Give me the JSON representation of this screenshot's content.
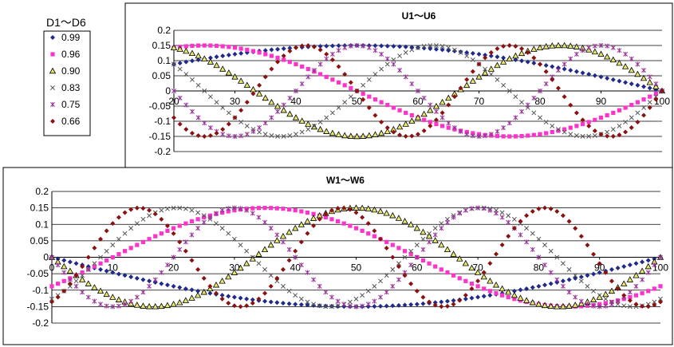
{
  "legend": {
    "title": "D1～D6",
    "entries": [
      {
        "label": "0.99",
        "color": "#1f2a8c",
        "marker": "diamond"
      },
      {
        "label": "0.96",
        "color": "#ff33cc",
        "marker": "square"
      },
      {
        "label": "0.90",
        "color": "#e8e870",
        "marker": "triangle"
      },
      {
        "label": "0.83",
        "color": "#555555",
        "marker": "x"
      },
      {
        "label": "0.75",
        "color": "#993399",
        "marker": "star"
      },
      {
        "label": "0.66",
        "color": "#8b1010",
        "marker": "diamond"
      }
    ]
  },
  "chart_data": [
    {
      "type": "scatter",
      "title": "U1～U6",
      "xlim": [
        20,
        100
      ],
      "ylim": [
        -0.2,
        0.2
      ],
      "x_ticks": [
        "20",
        "30",
        "40",
        "50",
        "60",
        "70",
        "80",
        "90",
        "100"
      ],
      "y_ticks": [
        "0.2",
        "0.15",
        "0.1",
        "0.05",
        "0",
        "-0.05",
        "-0.1",
        "-0.15",
        "-0.2"
      ],
      "grid": true,
      "x_step": 1,
      "series": [
        {
          "label_ref": "0.99",
          "amplitude": 0.15,
          "wavelength": 200,
          "phase_origin": 0
        },
        {
          "label_ref": "0.96",
          "amplitude": 0.15,
          "wavelength": 100,
          "phase_origin": 0
        },
        {
          "label_ref": "0.90",
          "amplitude": 0.15,
          "wavelength": 66.67,
          "phase_origin": 0
        },
        {
          "label_ref": "0.83",
          "amplitude": 0.15,
          "wavelength": 50,
          "phase_origin": 0
        },
        {
          "label_ref": "0.75",
          "amplitude": 0.15,
          "wavelength": 40,
          "phase_origin": 0
        },
        {
          "label_ref": "0.66",
          "amplitude": 0.15,
          "wavelength": 33.33,
          "phase_origin": 0
        }
      ]
    },
    {
      "type": "scatter",
      "title": "W1～W6",
      "xlim": [
        0,
        100
      ],
      "ylim": [
        -0.2,
        0.2
      ],
      "x_ticks": [
        "0",
        "10",
        "20",
        "30",
        "40",
        "50",
        "60",
        "70",
        "80",
        "90",
        "100"
      ],
      "y_ticks": [
        "0.2",
        "0.15",
        "0.1",
        "0.05",
        "0",
        "-0.05",
        "-0.1",
        "-0.15",
        "-0.2"
      ],
      "grid": true,
      "x_step": 1,
      "series": [
        {
          "label_ref": "0.99",
          "amplitude": -0.15,
          "wavelength": 200,
          "phase_origin": 0
        },
        {
          "label_ref": "0.96",
          "amplitude": 0.15,
          "wavelength": 100,
          "phase_origin": 10
        },
        {
          "label_ref": "0.90",
          "amplitude": -0.15,
          "wavelength": 66.67,
          "phase_origin": 0
        },
        {
          "label_ref": "0.83",
          "amplitude": 0.15,
          "wavelength": 50,
          "phase_origin": 8
        },
        {
          "label_ref": "0.75",
          "amplitude": -0.15,
          "wavelength": 40,
          "phase_origin": 0
        },
        {
          "label_ref": "0.66",
          "amplitude": 0.15,
          "wavelength": 33.33,
          "phase_origin": 6
        }
      ]
    }
  ]
}
